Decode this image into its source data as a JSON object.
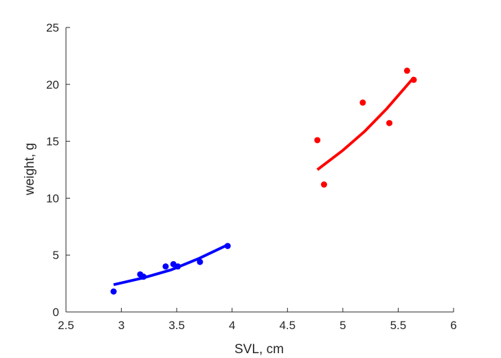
{
  "chart_data": {
    "type": "scatter",
    "xlabel": "SVL, cm",
    "ylabel": "weight, g",
    "xlim": [
      2.5,
      6
    ],
    "ylim": [
      0,
      25
    ],
    "xticks": [
      "2.5",
      "3",
      "3.5",
      "4",
      "4.5",
      "5",
      "5.5",
      "6"
    ],
    "yticks": [
      "0",
      "5",
      "10",
      "15",
      "20",
      "25"
    ],
    "grid": false,
    "legend": "none",
    "series": [
      {
        "color": "#0000ff",
        "points": [
          {
            "x": 2.93,
            "y": 1.8
          },
          {
            "x": 3.17,
            "y": 3.3
          },
          {
            "x": 3.2,
            "y": 3.1
          },
          {
            "x": 3.4,
            "y": 4.0
          },
          {
            "x": 3.47,
            "y": 4.2
          },
          {
            "x": 3.51,
            "y": 4.0
          },
          {
            "x": 3.71,
            "y": 4.4
          },
          {
            "x": 3.96,
            "y": 5.8
          }
        ],
        "fit": [
          {
            "x": 2.93,
            "y": 2.4
          },
          {
            "x": 3.2,
            "y": 3.0
          },
          {
            "x": 3.45,
            "y": 3.7
          },
          {
            "x": 3.7,
            "y": 4.7
          },
          {
            "x": 3.96,
            "y": 5.9
          }
        ]
      },
      {
        "color": "#ff0000",
        "points": [
          {
            "x": 4.77,
            "y": 15.1
          },
          {
            "x": 4.83,
            "y": 11.2
          },
          {
            "x": 5.18,
            "y": 18.4
          },
          {
            "x": 5.42,
            "y": 16.6
          },
          {
            "x": 5.58,
            "y": 21.2
          },
          {
            "x": 5.64,
            "y": 20.4
          }
        ],
        "fit": [
          {
            "x": 4.77,
            "y": 12.5
          },
          {
            "x": 5.0,
            "y": 14.2
          },
          {
            "x": 5.2,
            "y": 15.9
          },
          {
            "x": 5.4,
            "y": 17.9
          },
          {
            "x": 5.64,
            "y": 20.6
          }
        ]
      }
    ]
  }
}
